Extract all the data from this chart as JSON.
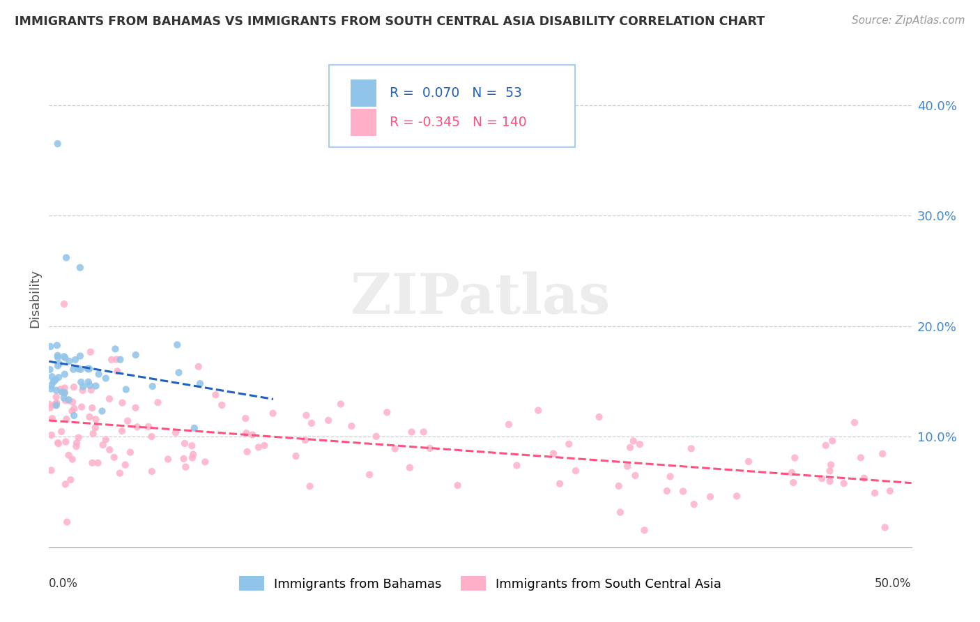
{
  "title": "IMMIGRANTS FROM BAHAMAS VS IMMIGRANTS FROM SOUTH CENTRAL ASIA DISABILITY CORRELATION CHART",
  "source": "Source: ZipAtlas.com",
  "ylabel": "Disability",
  "right_yticks": [
    0.1,
    0.2,
    0.3,
    0.4
  ],
  "right_ytick_labels": [
    "10.0%",
    "20.0%",
    "30.0%",
    "40.0%"
  ],
  "xlim": [
    0.0,
    0.5
  ],
  "ylim": [
    0.0,
    0.45
  ],
  "blue_color": "#90C4E8",
  "pink_color": "#FFB0C8",
  "blue_line_color": "#2060C0",
  "pink_line_color": "#FF5080",
  "grid_color": "#CCCCCC",
  "watermark": "ZIPatlas",
  "legend_r1": "R =  0.070",
  "legend_n1": "N =  53",
  "legend_r2": "R = -0.345",
  "legend_n2": "N = 140",
  "legend_label1": "Immigrants from Bahamas",
  "legend_label2": "Immigrants from South Central Asia"
}
